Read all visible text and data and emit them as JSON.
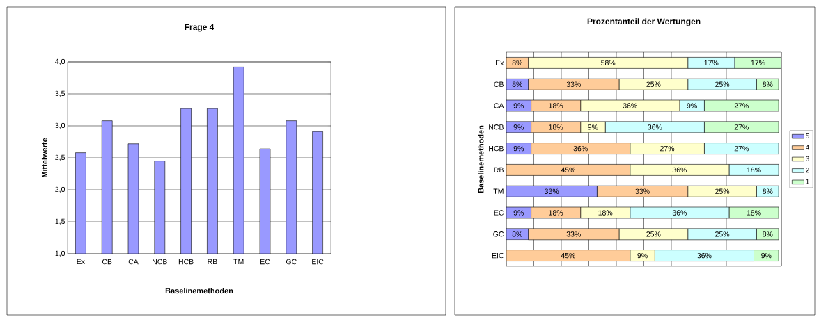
{
  "chart_data": [
    {
      "type": "bar",
      "title": "Frage 4",
      "xlabel": "Baselinemethoden",
      "ylabel": "Mittelwerte",
      "categories": [
        "Ex",
        "CB",
        "CA",
        "NCB",
        "HCB",
        "RB",
        "TM",
        "EC",
        "GC",
        "EIC"
      ],
      "values": [
        2.58,
        3.08,
        2.72,
        2.45,
        3.27,
        3.27,
        3.92,
        2.64,
        3.08,
        2.91
      ],
      "color": "#9999ff",
      "ylim": [
        1,
        4
      ],
      "yticks": [
        {
          "value": 1,
          "label": "1,0"
        },
        {
          "value": 1.5,
          "label": "1,5"
        },
        {
          "value": 2,
          "label": "2,0"
        },
        {
          "value": 2.5,
          "label": "2,5"
        },
        {
          "value": 3,
          "label": "3,0"
        },
        {
          "value": 3.5,
          "label": "3,5"
        },
        {
          "value": 4,
          "label": "4,0"
        }
      ],
      "grid": "y",
      "legend": false
    },
    {
      "type": "bar",
      "title": "Prozentanteil der Wertungen",
      "ylabel": "Baselinemethoden",
      "orientation": "horizontal",
      "stacked": true,
      "categories": [
        "Ex",
        "CB",
        "CA",
        "NCB",
        "HCB",
        "RB",
        "TM",
        "EC",
        "GC",
        "EIC"
      ],
      "series": [
        {
          "name": "5",
          "color": "#9999ff",
          "values": [
            0,
            8,
            9,
            9,
            9,
            0,
            33,
            9,
            8,
            0
          ],
          "value_labels": [
            null,
            "8%",
            "9%",
            "9%",
            "9%",
            null,
            "33%",
            "9%",
            "8%",
            null
          ]
        },
        {
          "name": "4",
          "color": "#ffcc99",
          "values": [
            8,
            33,
            18,
            18,
            36,
            45,
            33,
            18,
            33,
            45
          ],
          "value_labels": [
            "8%",
            "33%",
            "18%",
            "18%",
            "36%",
            "45%",
            "33%",
            "18%",
            "33%",
            "45%"
          ]
        },
        {
          "name": "3",
          "color": "#ffffcc",
          "values": [
            58,
            25,
            36,
            9,
            27,
            36,
            25,
            18,
            25,
            9
          ],
          "value_labels": [
            "58%",
            "25%",
            "36%",
            "9%",
            "27%",
            "36%",
            "25%",
            "18%",
            "25%",
            "9%"
          ]
        },
        {
          "name": "2",
          "color": "#ccffff",
          "values": [
            17,
            25,
            9,
            36,
            27,
            18,
            8,
            36,
            25,
            36
          ],
          "value_labels": [
            "17%",
            "25%",
            "9%",
            "36%",
            "27%",
            "18%",
            "8%",
            "36%",
            "25%",
            "36%"
          ]
        },
        {
          "name": "1",
          "color": "#ccffcc",
          "values": [
            17,
            8,
            27,
            27,
            0,
            0,
            0,
            18,
            8,
            9
          ],
          "value_labels": [
            "17%",
            "8%",
            "27%",
            "27%",
            null,
            null,
            null,
            "18%",
            "8%",
            "9%"
          ]
        }
      ],
      "grid": "x",
      "legend": "right",
      "tick_labels": "y"
    }
  ]
}
